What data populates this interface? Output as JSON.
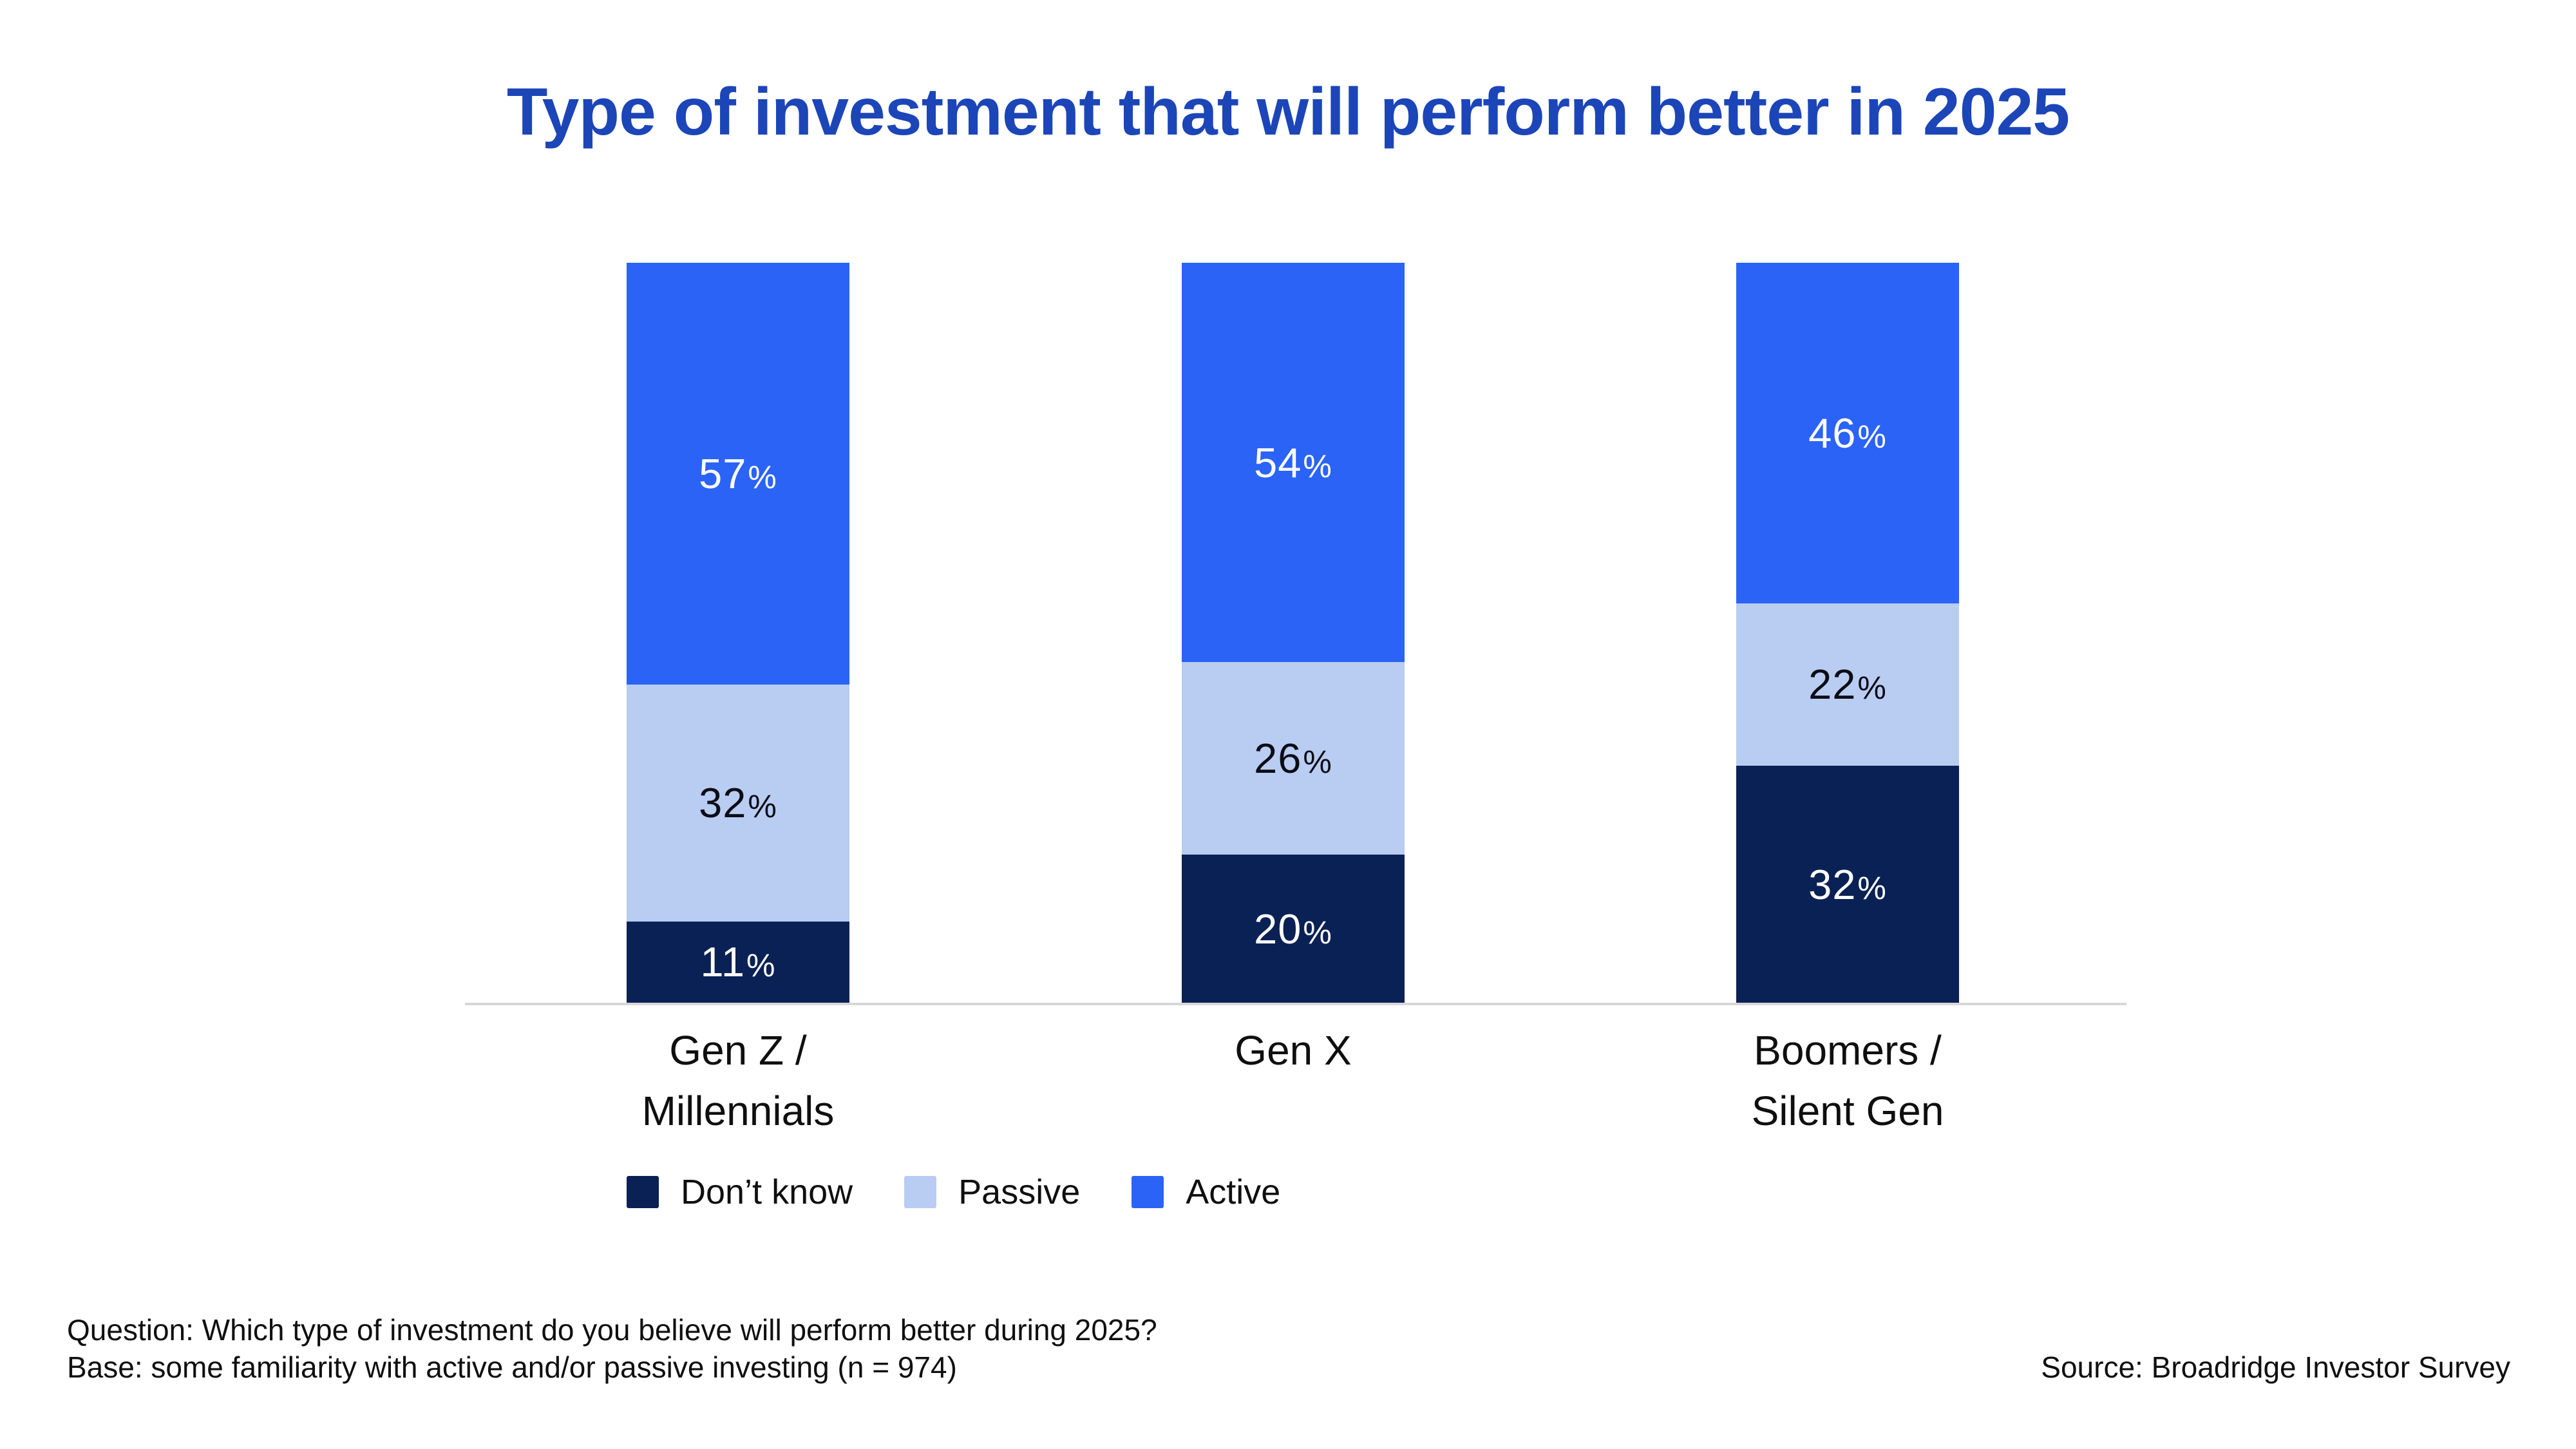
{
  "title": "Type of investment that will perform better in 2025",
  "chart_data": {
    "type": "bar",
    "subtype": "stacked-100-percent-column",
    "title": "Type of investment that will perform better in 2025",
    "xlabel": "",
    "ylabel": "",
    "ylim": [
      0,
      100
    ],
    "grid": false,
    "value_suffix": "%",
    "categories": [
      [
        "Gen Z /",
        "Millennials"
      ],
      [
        "Gen X"
      ],
      [
        "Boomers /",
        "Silent Gen"
      ]
    ],
    "series": [
      {
        "name": "Active",
        "color": "#2b63f6",
        "label_color": "#ffffff",
        "values": [
          57,
          54,
          46
        ]
      },
      {
        "name": "Passive",
        "color": "#b9ccf2",
        "label_color": "#0b0d15",
        "values": [
          32,
          26,
          22
        ]
      },
      {
        "name": "Don’t know",
        "color": "#0a2155",
        "label_color": "#ffffff",
        "values": [
          11,
          20,
          32
        ]
      }
    ],
    "legend_position": "bottom-left"
  },
  "legend": {
    "items": [
      {
        "label": "Don’t know",
        "color": "#0a2155"
      },
      {
        "label": "Passive",
        "color": "#b9ccf2"
      },
      {
        "label": "Active",
        "color": "#2b63f6"
      }
    ]
  },
  "footnotes": {
    "question": "Question: Which type of investment do you believe will perform better during 2025?",
    "base": "Base: some familiarity with active and/or passive investing (n = 974)",
    "source": "Source: Broadridge Investor Survey"
  },
  "colors": {
    "title": "#1c45b8",
    "axis_line": "#d8d8d8",
    "text": "#0f0f0f",
    "background": "#ffffff"
  }
}
